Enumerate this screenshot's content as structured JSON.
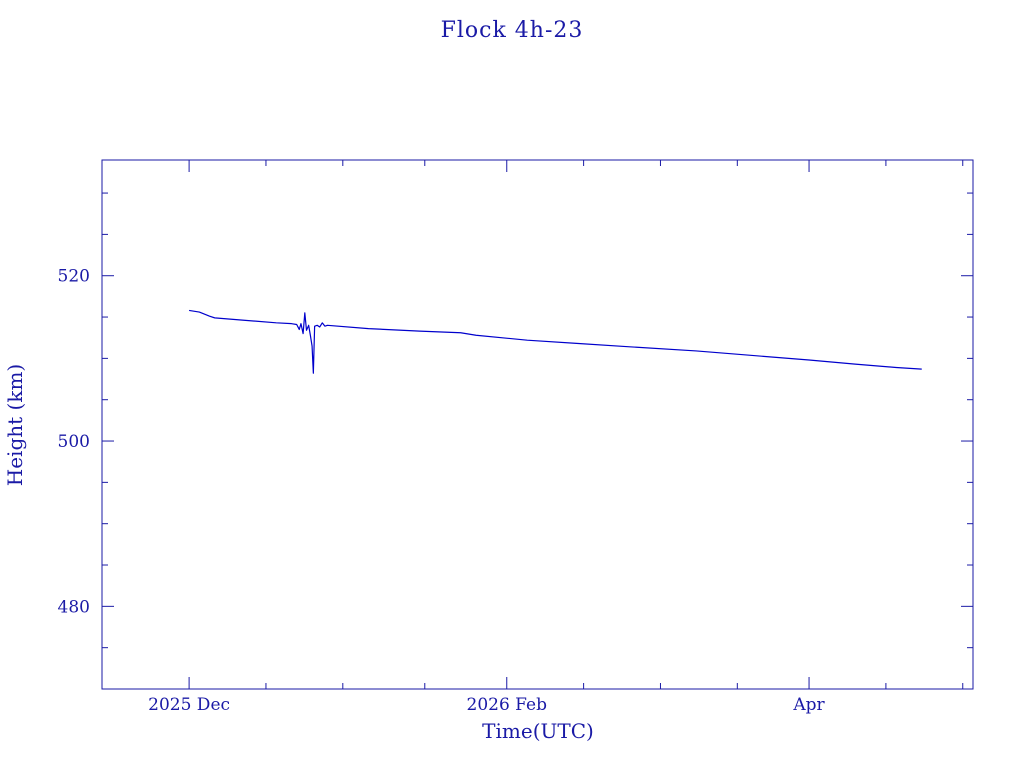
{
  "chart_data": {
    "type": "line",
    "title": "Flock 4h-23",
    "xlabel": "Time(UTC)",
    "ylabel": "Height (km)",
    "grid": false,
    "colors": {
      "axis": "#1a1aa6",
      "line": "#0000cc"
    },
    "xlim": [
      "2025-11-14",
      "2026-05-03"
    ],
    "ylim": [
      470,
      534
    ],
    "x_ticks": [
      {
        "date": "2025-12-01",
        "label": "2025 Dec"
      },
      {
        "date": "2026-02-01",
        "label": "2026 Feb"
      },
      {
        "date": "2026-04-01",
        "label": "Apr"
      }
    ],
    "x_minor_ticks": [
      "2025-12-16",
      "2025-12-31",
      "2026-01-16",
      "2026-02-16",
      "2026-03-03",
      "2026-03-18",
      "2026-04-16",
      "2026-05-01"
    ],
    "y_ticks": [
      {
        "value": 480,
        "label": "480"
      },
      {
        "value": 500,
        "label": "500"
      },
      {
        "value": 520,
        "label": "520"
      }
    ],
    "y_minor_ticks": [
      475,
      485,
      490,
      495,
      505,
      510,
      515,
      525,
      530
    ],
    "series": [
      {
        "points": [
          [
            "2025-12-01T00:00",
            515.8
          ],
          [
            "2025-12-03T00:00",
            515.6
          ],
          [
            "2025-12-05T00:00",
            515.1
          ],
          [
            "2025-12-06T00:00",
            514.9
          ],
          [
            "2025-12-12T00:00",
            514.6
          ],
          [
            "2025-12-18T00:00",
            514.3
          ],
          [
            "2025-12-21T00:00",
            514.2
          ],
          [
            "2025-12-22T00:00",
            514.1
          ],
          [
            "2025-12-22T12:00",
            513.5
          ],
          [
            "2025-12-22T20:00",
            514.2
          ],
          [
            "2025-12-23T06:00",
            513.0
          ],
          [
            "2025-12-23T14:00",
            515.5
          ],
          [
            "2025-12-23T22:00",
            513.4
          ],
          [
            "2025-12-24T08:00",
            514.0
          ],
          [
            "2025-12-24T16:00",
            512.8
          ],
          [
            "2025-12-25T00:00",
            511.5
          ],
          [
            "2025-12-25T06:00",
            508.2
          ],
          [
            "2025-12-25T12:00",
            513.9
          ],
          [
            "2025-12-26T00:00",
            514.0
          ],
          [
            "2025-12-26T12:00",
            513.8
          ],
          [
            "2025-12-27T00:00",
            514.3
          ],
          [
            "2025-12-27T12:00",
            513.9
          ],
          [
            "2025-12-28T00:00",
            514.0
          ],
          [
            "2026-01-05T00:00",
            513.6
          ],
          [
            "2026-01-15T00:00",
            513.3
          ],
          [
            "2026-01-23T00:00",
            513.1
          ],
          [
            "2026-01-26T00:00",
            512.8
          ],
          [
            "2026-02-05T00:00",
            512.2
          ],
          [
            "2026-02-15T00:00",
            511.8
          ],
          [
            "2026-02-25T00:00",
            511.4
          ],
          [
            "2026-03-10T00:00",
            510.9
          ],
          [
            "2026-03-20T00:00",
            510.4
          ],
          [
            "2026-04-01T00:00",
            509.8
          ],
          [
            "2026-04-10T00:00",
            509.3
          ],
          [
            "2026-04-18T00:00",
            508.9
          ],
          [
            "2026-04-23T00:00",
            508.7
          ]
        ]
      }
    ]
  }
}
